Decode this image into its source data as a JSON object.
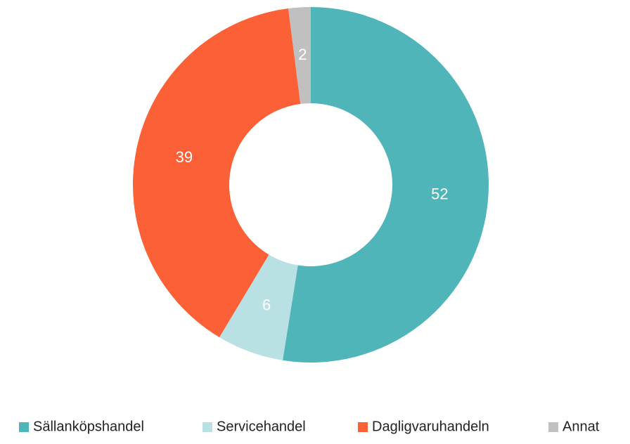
{
  "chart_data": {
    "type": "donut",
    "categories": [
      "Sällanköpshandel",
      "Servicehandel",
      "Dagligvaruhandeln",
      "Annat"
    ],
    "values": [
      52,
      6,
      39,
      2
    ],
    "colors": [
      "#4fb5b8",
      "#b9e0e3",
      "#fb6036",
      "#c0c0c0"
    ],
    "legend": "bottom"
  }
}
